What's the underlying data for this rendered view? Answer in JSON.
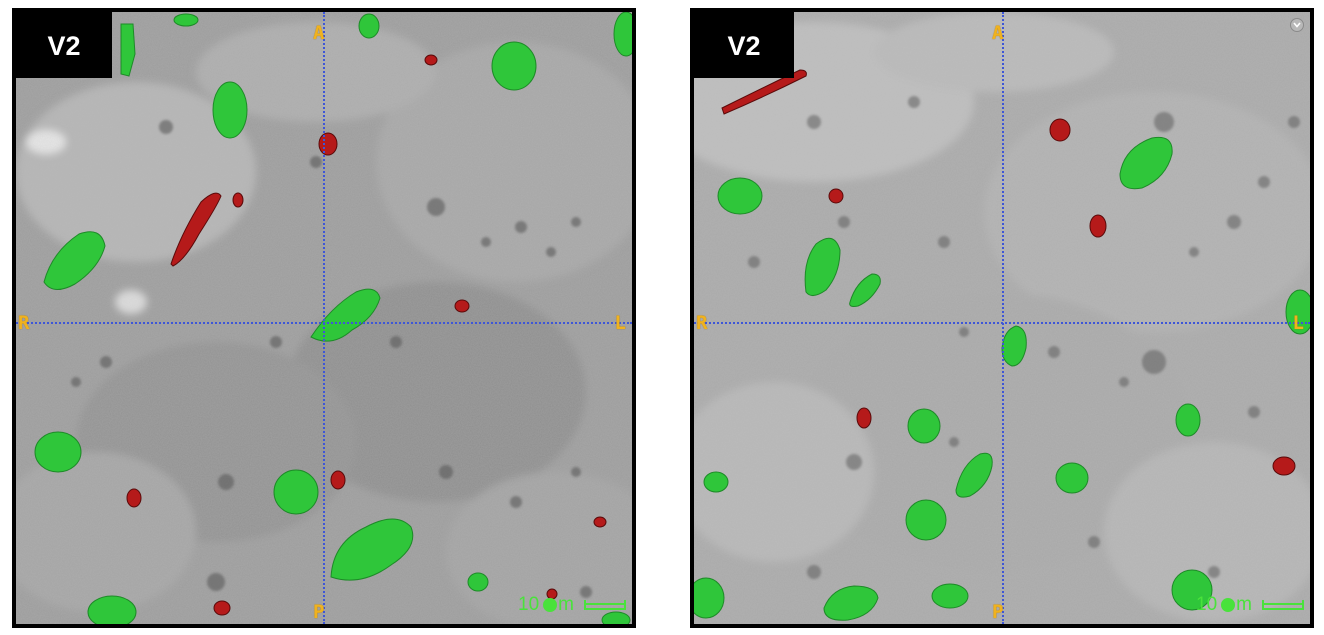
{
  "panels": [
    {
      "label": "V2",
      "orientation": {
        "top": "A",
        "bottom": "P",
        "left": "R",
        "right": "L"
      },
      "scale_bar": {
        "value": "10",
        "unit": "m"
      },
      "overlay_colors": {
        "mask_green": "#2fc63a",
        "mask_red": "#b51a1a",
        "crosshair": "#3d56d8"
      }
    },
    {
      "label": "V2",
      "orientation": {
        "top": "A",
        "bottom": "P",
        "left": "R",
        "right": "L"
      },
      "scale_bar": {
        "value": "10",
        "unit": "m"
      },
      "overlay_colors": {
        "mask_green": "#2fc63a",
        "mask_red": "#b51a1a",
        "crosshair": "#3d56d8"
      },
      "menu_icon": "chevron-down-icon"
    }
  ]
}
